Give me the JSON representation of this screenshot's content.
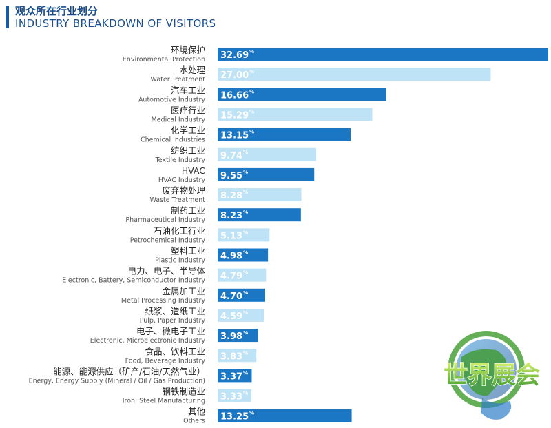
{
  "header": {
    "title_cn": "观众所在行业划分",
    "title_en": "INDUSTRY BREAKDOWN OF VISITORS"
  },
  "logo": {
    "text": "世界展会"
  },
  "colors": {
    "dark": "#1b76c4",
    "light": "#bfe3f6",
    "title": "#1a4f8f"
  },
  "chart_data": {
    "type": "bar",
    "orientation": "horizontal",
    "title": "观众所在行业划分 / INDUSTRY BREAKDOWN OF VISITORS",
    "xlim": [
      0,
      32.69
    ],
    "unit": "%",
    "categories": [
      {
        "cn": "环境保护",
        "en": "Environmental Protection",
        "value": 32.69,
        "label": "32.69",
        "shade": "dark"
      },
      {
        "cn": "水处理",
        "en": "Water Treatment",
        "value": 27.0,
        "label": "27.00",
        "shade": "light"
      },
      {
        "cn": "汽车工业",
        "en": "Automotive Industry",
        "value": 16.66,
        "label": "16.66",
        "shade": "dark"
      },
      {
        "cn": "医疗行业",
        "en": "Medical Industry",
        "value": 15.29,
        "label": "15.29",
        "shade": "light"
      },
      {
        "cn": "化学工业",
        "en": "Chemical Industries",
        "value": 13.15,
        "label": "13.15",
        "shade": "dark"
      },
      {
        "cn": "纺织工业",
        "en": "Textile Industry",
        "value": 9.74,
        "label": "9.74",
        "shade": "light"
      },
      {
        "cn": "HVAC",
        "en": "HVAC Industry",
        "value": 9.55,
        "label": "9.55",
        "shade": "dark"
      },
      {
        "cn": "废弃物处理",
        "en": "Waste Treatment",
        "value": 8.28,
        "label": "8.28",
        "shade": "light"
      },
      {
        "cn": "制药工业",
        "en": "Pharmaceutical Industry",
        "value": 8.23,
        "label": "8.23",
        "shade": "dark"
      },
      {
        "cn": "石油化工行业",
        "en": "Petrochemical Industry",
        "value": 5.13,
        "label": "5.13",
        "shade": "light"
      },
      {
        "cn": "塑料工业",
        "en": "Plastic Industry",
        "value": 4.98,
        "label": "4.98",
        "shade": "dark"
      },
      {
        "cn": "电力、电子、半导体",
        "en": "Electronic, Battery, Semiconductor Industry",
        "value": 4.79,
        "label": "4.79",
        "shade": "light"
      },
      {
        "cn": "金属加工业",
        "en": "Metal Processing Industry",
        "value": 4.7,
        "label": "4.70",
        "shade": "dark"
      },
      {
        "cn": "纸浆、造纸工业",
        "en": "Pulp, Paper Industry",
        "value": 4.59,
        "label": "4.59",
        "shade": "light"
      },
      {
        "cn": "电子、微电子工业",
        "en": "Electronic, Microelectronic Industry",
        "value": 3.98,
        "label": "3.98",
        "shade": "dark"
      },
      {
        "cn": "食品、饮料工业",
        "en": "Food, Beverage Industry",
        "value": 3.83,
        "label": "3.83",
        "shade": "light"
      },
      {
        "cn": "能源、能源供应（矿产/石油/天然气业）",
        "en": "Energy, Energy Supply (Mineral / Oil / Gas Production)",
        "value": 3.37,
        "label": "3.37",
        "shade": "dark"
      },
      {
        "cn": "钢铁制造业",
        "en": "Iron, Steel Manufacturing",
        "value": 3.33,
        "label": "3.33",
        "shade": "light"
      },
      {
        "cn": "其他",
        "en": "Others",
        "value": 13.25,
        "label": "13.25",
        "shade": "dark"
      }
    ]
  }
}
